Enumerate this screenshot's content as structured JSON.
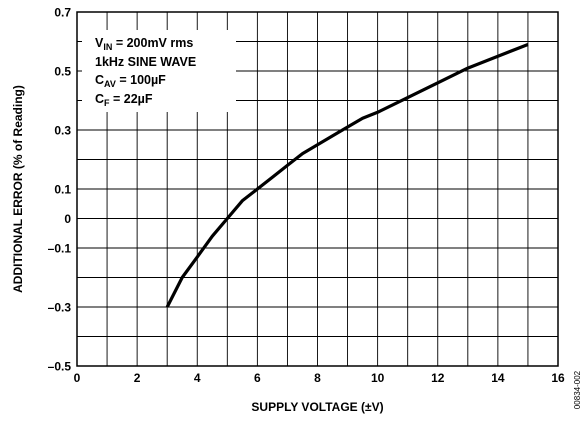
{
  "chart_data": {
    "type": "line",
    "xlabel": "SUPPLY VOLTAGE (±V)",
    "ylabel": "ADDITIONAL ERROR (% of Reading)",
    "xlim": [
      0,
      16
    ],
    "ylim": [
      -0.5,
      0.7
    ],
    "xticks": [
      0,
      2,
      4,
      6,
      8,
      10,
      12,
      14,
      16
    ],
    "yticks": [
      -0.5,
      -0.3,
      -0.1,
      0,
      0.1,
      0.3,
      0.5,
      0.7
    ],
    "ytick_labels": [
      "–0.5",
      "–0.3",
      "–0.1",
      "0",
      "0.1",
      "0.3",
      "0.5",
      "0.7"
    ],
    "grid": true,
    "series": [
      {
        "x": [
          3.0,
          3.5,
          4.0,
          4.5,
          5.0,
          5.5,
          6.0,
          6.5,
          7.0,
          7.5,
          8.0,
          8.5,
          9.0,
          9.5,
          10.0,
          11.0,
          12.0,
          13.0,
          14.0,
          15.0
        ],
        "y": [
          -0.3,
          -0.2,
          -0.13,
          -0.06,
          0.0,
          0.06,
          0.1,
          0.14,
          0.18,
          0.22,
          0.25,
          0.28,
          0.31,
          0.34,
          0.36,
          0.41,
          0.46,
          0.51,
          0.55,
          0.59
        ]
      }
    ],
    "annotation": {
      "lines": [
        {
          "main": "V",
          "sub": "IN",
          "rest": " = 200mV rms"
        },
        {
          "main": "1kHz SINE WAVE",
          "sub": "",
          "rest": ""
        },
        {
          "main": "C",
          "sub": "AV",
          "rest": " = 100µF"
        },
        {
          "main": "C",
          "sub": "F",
          "rest": " = 22µF"
        }
      ]
    },
    "figure_id": "00834-002"
  }
}
